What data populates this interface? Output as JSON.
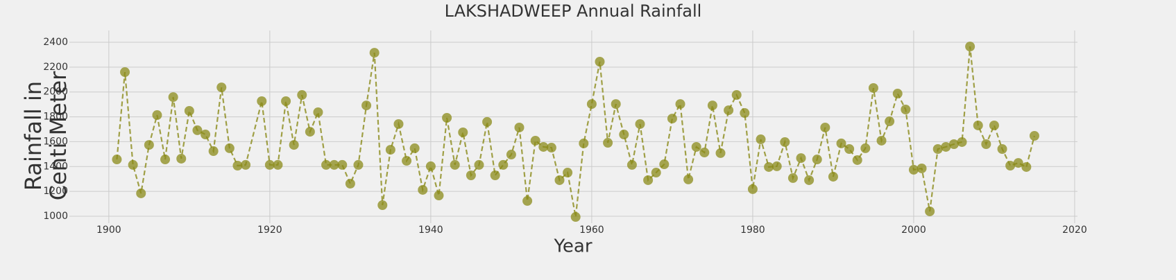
{
  "chart_data": {
    "type": "line",
    "title": "LAKSHADWEEP Annual Rainfall",
    "xlabel": "Year",
    "ylabel": "Rainfall in\nCenti Meter",
    "x": [
      1901,
      1902,
      1903,
      1904,
      1905,
      1906,
      1907,
      1908,
      1909,
      1910,
      1911,
      1912,
      1913,
      1914,
      1915,
      1916,
      1917,
      1919,
      1920,
      1921,
      1922,
      1923,
      1924,
      1925,
      1926,
      1927,
      1928,
      1929,
      1930,
      1931,
      1932,
      1933,
      1934,
      1935,
      1936,
      1937,
      1938,
      1939,
      1940,
      1941,
      1942,
      1943,
      1944,
      1945,
      1946,
      1947,
      1948,
      1949,
      1950,
      1951,
      1952,
      1953,
      1954,
      1955,
      1956,
      1957,
      1958,
      1959,
      1960,
      1961,
      1962,
      1963,
      1964,
      1965,
      1966,
      1967,
      1968,
      1969,
      1970,
      1971,
      1972,
      1973,
      1974,
      1975,
      1976,
      1977,
      1978,
      1979,
      1980,
      1981,
      1982,
      1983,
      1984,
      1985,
      1986,
      1987,
      1988,
      1989,
      1990,
      1991,
      1992,
      1993,
      1994,
      1995,
      1996,
      1997,
      1998,
      1999,
      2000,
      2001,
      2002,
      2003,
      2004,
      2005,
      2006,
      2007,
      2008,
      2009,
      2010,
      2011,
      2012,
      2013,
      2014,
      2015
    ],
    "series": [
      {
        "name": "Rainfall",
        "color": "#8b8b1a",
        "values": [
          1457,
          2160,
          1413,
          1184,
          1574,
          1814,
          1457,
          1959,
          1463,
          1848,
          1692,
          1658,
          1524,
          2037,
          1547,
          1407,
          1413,
          1926,
          1413,
          1413,
          1926,
          1574,
          1976,
          1680,
          1837,
          1413,
          1413,
          1413,
          1262,
          1413,
          1892,
          2316,
          1089,
          1535,
          1742,
          1446,
          1547,
          1212,
          1402,
          1167,
          1792,
          1413,
          1675,
          1329,
          1413,
          1759,
          1329,
          1413,
          1496,
          1714,
          1123,
          1608,
          1558,
          1552,
          1290,
          1351,
          994,
          1586,
          1903,
          2244,
          1591,
          1903,
          1658,
          1413,
          1742,
          1290,
          1351,
          1418,
          1786,
          1903,
          1296,
          1558,
          1513,
          1892,
          1508,
          1853,
          1976,
          1831,
          1218,
          1619,
          1396,
          1402,
          1597,
          1307,
          1468,
          1290,
          1457,
          1714,
          1318,
          1586,
          1541,
          1452,
          1547,
          2032,
          1608,
          1764,
          1987,
          1859,
          1374,
          1385,
          1039,
          1541,
          1558,
          1580,
          1597,
          2366,
          1731,
          1580,
          1731,
          1541,
          1407,
          1429,
          1396,
          1647
        ]
      }
    ],
    "xlim": [
      1895.1,
      2020.35
    ],
    "ylim": [
      944,
      2495
    ],
    "xticks": [
      1900,
      1920,
      1940,
      1960,
      1980,
      2000,
      2020
    ],
    "yticks": [
      1000,
      1200,
      1400,
      1600,
      1800,
      2000,
      2200,
      2400
    ],
    "grid": true
  }
}
